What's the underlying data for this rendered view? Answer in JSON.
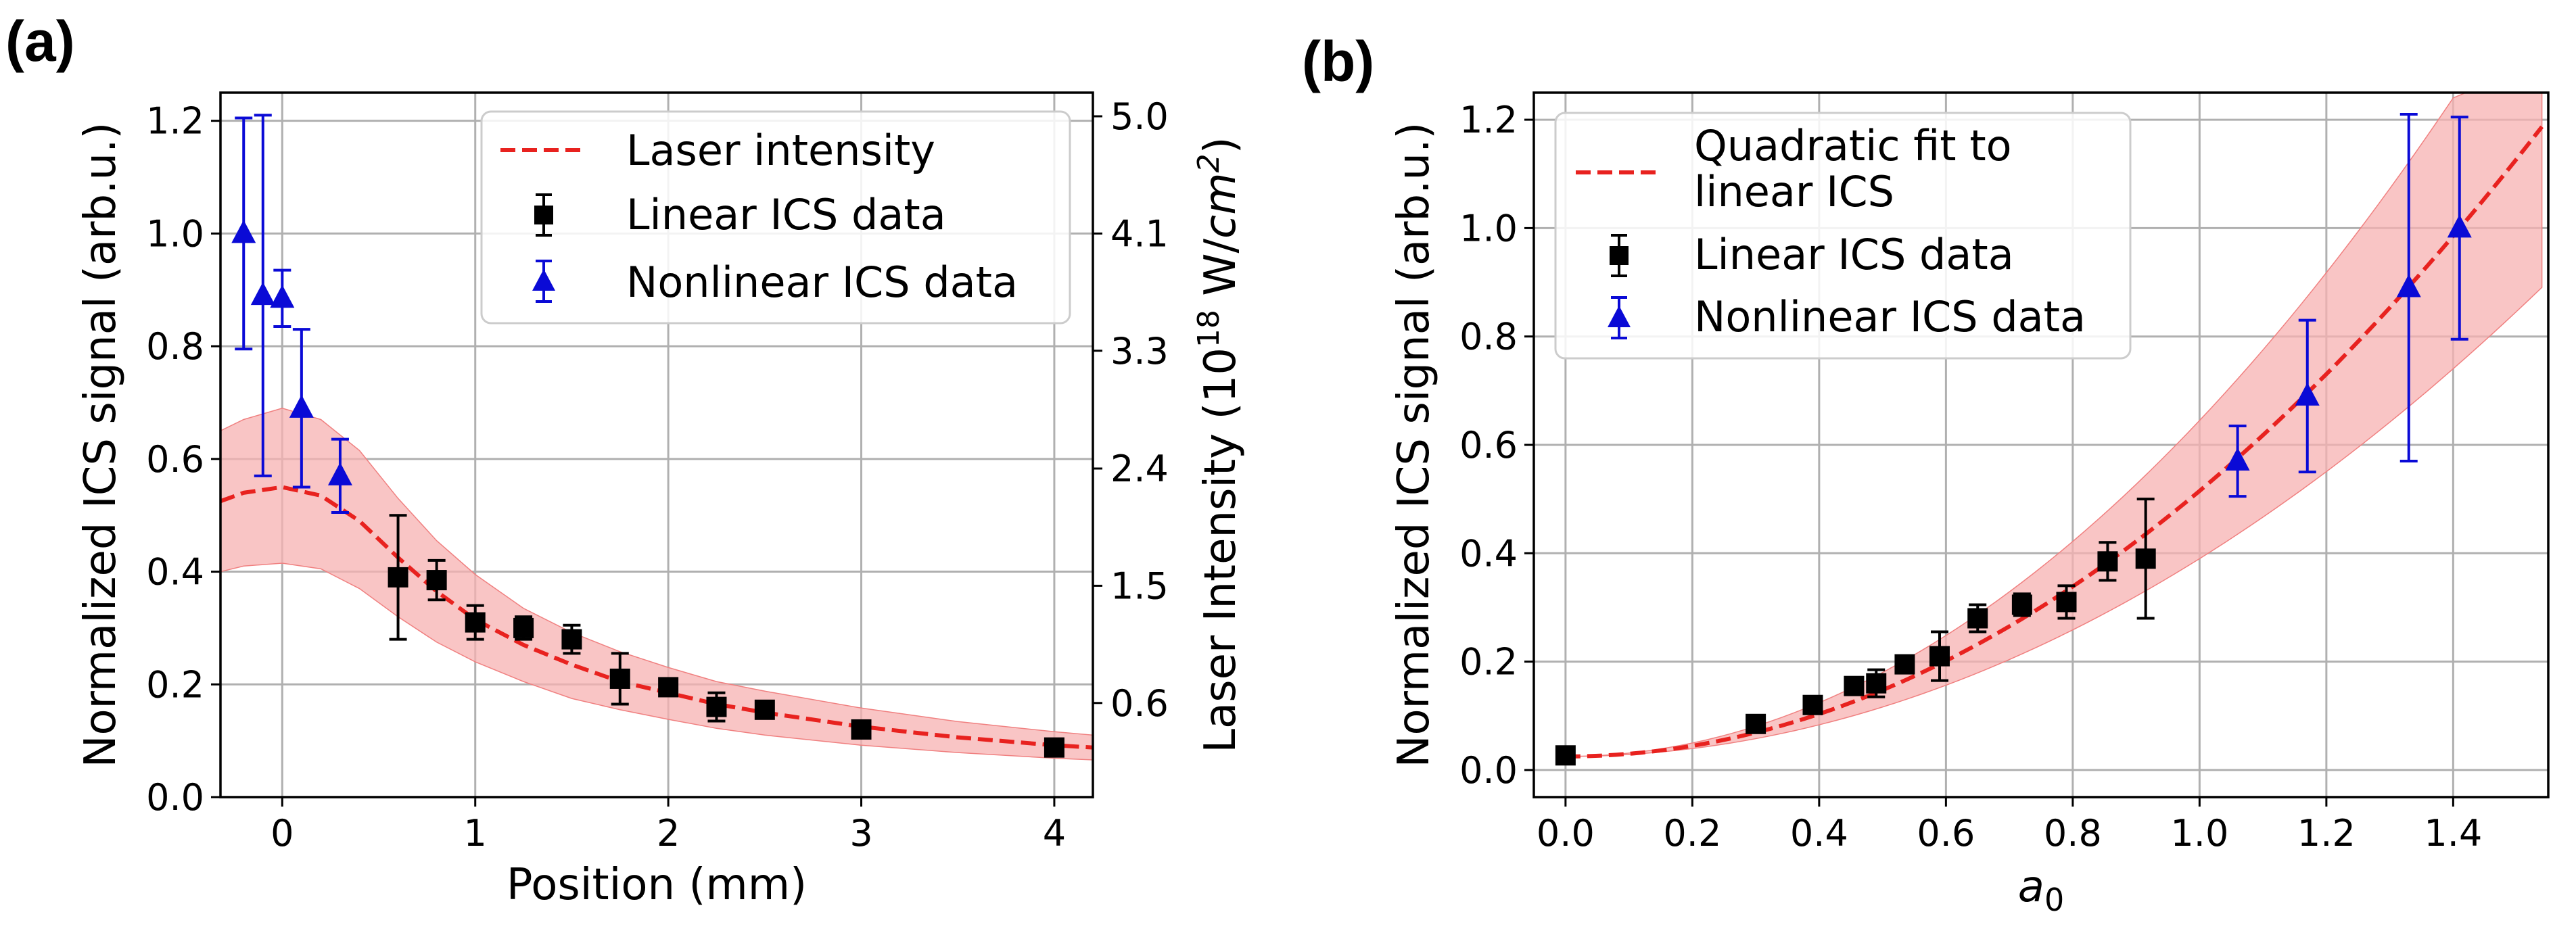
{
  "chart_data": [
    {
      "panel_label": "(a)",
      "type": "scatter",
      "xlabel": "Position (mm)",
      "ylabel": "Normalized ICS signal (arb.u.)",
      "y2label_prefix": "Laser Intensity (10",
      "y2label_exp": "18",
      "y2label_unit": " W/",
      "y2label_unit_italic": "cm",
      "y2label_unit_exp": "2",
      "y2label_suffix": ")",
      "xlim": [
        -0.32,
        4.2
      ],
      "ylim": [
        0.0,
        1.25
      ],
      "xticks": [
        0,
        1,
        2,
        3,
        4
      ],
      "xtick_labels": [
        "0",
        "1",
        "2",
        "3",
        "4"
      ],
      "yticks": [
        0.0,
        0.2,
        0.4,
        0.6,
        0.8,
        1.0,
        1.2
      ],
      "ytick_labels": [
        "0.0",
        "0.2",
        "0.4",
        "0.6",
        "0.8",
        "1.0",
        "1.2"
      ],
      "y2ticks": [
        0.167,
        0.375,
        0.583,
        0.792,
        1.0,
        1.208
      ],
      "y2tick_labels": [
        "0.6",
        "1.5",
        "2.4",
        "3.3",
        "4.1",
        "5.0"
      ],
      "grid": true,
      "legend_position": "top-right",
      "legend": [
        "Laser intensity",
        "Linear ICS data",
        "Nonlinear ICS data"
      ],
      "series": [
        {
          "name": "Laser intensity",
          "kind": "dashed-line",
          "color": "#e8221f",
          "band_color": "#f7b2b2",
          "x": [
            -0.32,
            -0.2,
            0.0,
            0.2,
            0.4,
            0.6,
            0.8,
            1.0,
            1.25,
            1.5,
            1.75,
            2.0,
            2.25,
            2.5,
            3.0,
            3.5,
            4.0,
            4.2
          ],
          "y": [
            0.525,
            0.54,
            0.55,
            0.535,
            0.49,
            0.425,
            0.365,
            0.315,
            0.27,
            0.235,
            0.205,
            0.185,
            0.165,
            0.15,
            0.125,
            0.106,
            0.092,
            0.088
          ],
          "y_low": [
            0.4,
            0.41,
            0.415,
            0.405,
            0.37,
            0.32,
            0.275,
            0.24,
            0.205,
            0.175,
            0.155,
            0.138,
            0.122,
            0.11,
            0.092,
            0.079,
            0.069,
            0.066
          ],
          "y_high": [
            0.65,
            0.67,
            0.69,
            0.67,
            0.615,
            0.53,
            0.455,
            0.395,
            0.335,
            0.292,
            0.258,
            0.23,
            0.205,
            0.188,
            0.158,
            0.134,
            0.116,
            0.11
          ]
        },
        {
          "name": "Linear ICS data",
          "kind": "errorbar-square",
          "color": "#000000",
          "x": [
            0.6,
            0.8,
            1.0,
            1.25,
            1.5,
            1.75,
            2.0,
            2.25,
            2.5,
            3.0,
            4.0
          ],
          "y": [
            0.39,
            0.385,
            0.31,
            0.3,
            0.28,
            0.21,
            0.195,
            0.16,
            0.155,
            0.12,
            0.088
          ],
          "err": [
            0.11,
            0.035,
            0.03,
            0.02,
            0.025,
            0.045,
            0.012,
            0.025,
            0.01,
            0.01,
            0.008
          ]
        },
        {
          "name": "Nonlinear ICS data",
          "kind": "errorbar-triangle",
          "color": "#0a0ad6",
          "x": [
            -0.2,
            -0.1,
            0.0,
            0.1,
            0.3
          ],
          "y": [
            1.0,
            0.89,
            0.885,
            0.69,
            0.57
          ],
          "err": [
            0.205,
            0.32,
            0.05,
            0.14,
            0.065
          ]
        }
      ]
    },
    {
      "panel_label": "(b)",
      "type": "scatter",
      "xlabel_var": "a",
      "xlabel_sub": "0",
      "ylabel": "Normalized ICS signal (arb.u.)",
      "xlim": [
        -0.05,
        1.55
      ],
      "ylim": [
        -0.05,
        1.25
      ],
      "xticks": [
        0.0,
        0.2,
        0.4,
        0.6,
        0.8,
        1.0,
        1.2,
        1.4
      ],
      "xtick_labels": [
        "0.0",
        "0.2",
        "0.4",
        "0.6",
        "0.8",
        "1.0",
        "1.2",
        "1.4"
      ],
      "yticks": [
        0.0,
        0.2,
        0.4,
        0.6,
        0.8,
        1.0,
        1.2
      ],
      "ytick_labels": [
        "0.0",
        "0.2",
        "0.4",
        "0.6",
        "0.8",
        "1.0",
        "1.2"
      ],
      "grid": true,
      "legend_position": "top-left",
      "legend": [
        "Quadratic fit to",
        "linear ICS",
        "Linear ICS data",
        "Nonlinear ICS data"
      ],
      "series": [
        {
          "name": "Quadratic fit to linear ICS",
          "kind": "dashed-line",
          "color": "#e8221f",
          "band_color": "#f7b2b2",
          "fit": {
            "intercept": 0.025,
            "coef": 0.49
          },
          "band_low_coef": 0.365,
          "band_high_coef": 0.62
        },
        {
          "name": "Linear ICS data",
          "kind": "errorbar-square",
          "color": "#000000",
          "x": [
            0.0,
            0.3,
            0.39,
            0.455,
            0.49,
            0.535,
            0.59,
            0.65,
            0.72,
            0.79,
            0.855,
            0.915
          ],
          "y": [
            0.027,
            0.085,
            0.12,
            0.155,
            0.16,
            0.195,
            0.21,
            0.28,
            0.305,
            0.31,
            0.385,
            0.39
          ],
          "err": [
            0.005,
            0.008,
            0.01,
            0.01,
            0.025,
            0.012,
            0.045,
            0.025,
            0.02,
            0.03,
            0.035,
            0.11
          ]
        },
        {
          "name": "Nonlinear ICS data",
          "kind": "errorbar-triangle",
          "color": "#0a0ad6",
          "x": [
            1.06,
            1.17,
            1.33,
            1.41
          ],
          "y": [
            0.57,
            0.69,
            0.89,
            1.0
          ],
          "err": [
            0.065,
            0.14,
            0.32,
            0.205
          ]
        }
      ]
    }
  ]
}
